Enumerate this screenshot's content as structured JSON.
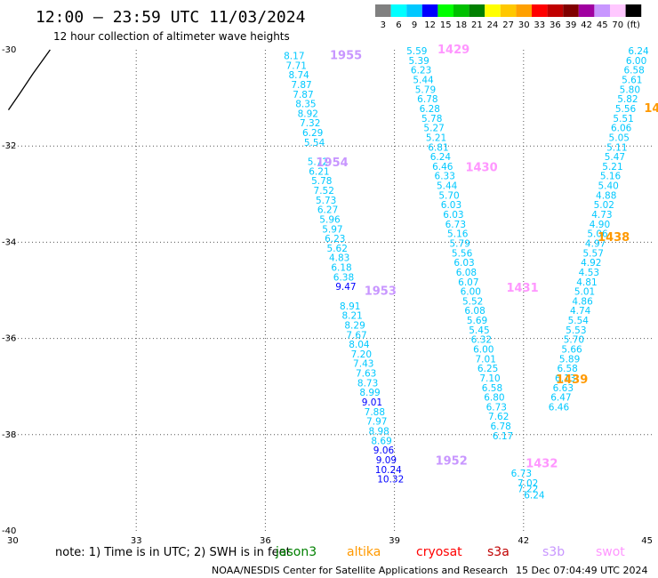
{
  "header": {
    "title": "12:00 — 23:59 UTC 11/03/2024",
    "subtitle": "12 hour collection of altimeter wave heights"
  },
  "legend": {
    "labels": [
      "3",
      "6",
      "9",
      "12",
      "15",
      "18",
      "21",
      "24",
      "27",
      "30",
      "33",
      "36",
      "39",
      "42",
      "45",
      "70",
      "(ft)"
    ],
    "colors": [
      "#808080",
      "#00ffff",
      "#00c8ff",
      "#0000ff",
      "#00ff00",
      "#00c000",
      "#008000",
      "#ffff00",
      "#ffc800",
      "#ffa000",
      "#ff0000",
      "#c00000",
      "#800000",
      "#a000a0",
      "#c896ff",
      "#ffc8ff",
      "#000000"
    ]
  },
  "note": {
    "prefix": "note:  1) Time is in UTC; 2) SWH is in feet",
    "satellites": [
      {
        "name": "jason3",
        "color": "#008000"
      },
      {
        "name": "altika",
        "color": "#ff9900"
      },
      {
        "name": "cryosat",
        "color": "#ff0000"
      },
      {
        "name": "s3a",
        "color": "#c00000"
      },
      {
        "name": "s3b",
        "color": "#c896ff"
      },
      {
        "name": "swot",
        "color": "#ff96ff"
      }
    ]
  },
  "footer": {
    "credit": "NOAA/NESDIS Center for Satellite Applications and Research",
    "timestamp": "15 Dec 07:04:49 UTC 2024"
  },
  "chart_data": {
    "type": "scatter",
    "xlabel": "",
    "ylabel": "",
    "xlim": [
      30,
      45
    ],
    "ylim": [
      -40,
      -30
    ],
    "x_ticks": [
      "30",
      "33",
      "36",
      "39",
      "42",
      "45"
    ],
    "y_ticks": [
      "-30",
      "-32",
      "-34",
      "-36",
      "-38",
      "-40"
    ],
    "grid": true,
    "grid_style": "dotted",
    "coast": [
      [
        30.03,
        -31.25
      ],
      [
        30.3,
        -30.9
      ],
      [
        30.6,
        -30.5
      ],
      [
        30.8,
        -30.25
      ],
      [
        31.0,
        -30.0
      ]
    ],
    "tracks": [
      {
        "color": "#00c8ff",
        "points": [
          [
            36.67,
            -30.12,
            "8.17"
          ],
          [
            36.72,
            -30.32,
            "7.71"
          ],
          [
            36.78,
            -30.52,
            "8.74"
          ],
          [
            36.84,
            -30.72,
            "7.87"
          ],
          [
            36.88,
            -30.92,
            "7.87"
          ],
          [
            36.94,
            -31.12,
            "8.35"
          ],
          [
            36.99,
            -31.32,
            "8.92"
          ],
          [
            37.04,
            -31.52,
            "7.32"
          ],
          [
            37.1,
            -31.72,
            "6.29"
          ],
          [
            37.14,
            -31.92,
            "5.54"
          ],
          [
            37.22,
            -32.32,
            "5.72"
          ],
          [
            37.25,
            -32.52,
            "6.21"
          ],
          [
            37.31,
            -32.72,
            "5.78"
          ],
          [
            37.36,
            -32.92,
            "7.52"
          ],
          [
            37.41,
            -33.12,
            "5.73"
          ],
          [
            37.45,
            -33.32,
            "6.27"
          ],
          [
            37.5,
            -33.52,
            "5.96"
          ],
          [
            37.56,
            -33.72,
            "5.97"
          ],
          [
            37.62,
            -33.92,
            "6.23"
          ],
          [
            37.67,
            -34.12,
            "5.62"
          ],
          [
            37.72,
            -34.32,
            "4.83"
          ],
          [
            37.77,
            -34.52,
            "6.18"
          ],
          [
            37.82,
            -34.72,
            "6.38"
          ],
          [
            37.97,
            -35.32,
            "8.91"
          ],
          [
            38.02,
            -35.52,
            "8.21"
          ],
          [
            38.08,
            -35.72,
            "8.29"
          ],
          [
            38.12,
            -35.92,
            "7.67"
          ],
          [
            38.18,
            -36.12,
            "8.04"
          ],
          [
            38.23,
            -36.32,
            "7.20"
          ],
          [
            38.28,
            -36.52,
            "7.43"
          ],
          [
            38.34,
            -36.72,
            "7.63"
          ],
          [
            38.38,
            -36.92,
            "8.73"
          ],
          [
            38.43,
            -37.12,
            "8.99"
          ],
          [
            38.54,
            -37.52,
            "7.88"
          ],
          [
            38.59,
            -37.72,
            "7.97"
          ],
          [
            38.64,
            -37.92,
            "8.98"
          ],
          [
            38.7,
            -38.12,
            "8.69"
          ],
          [
            42.1,
            -39.12,
            "7.22"
          ],
          [
            42.25,
            -39.25,
            "6.24"
          ],
          [
            42.1,
            -39.0,
            "7.02"
          ],
          [
            41.95,
            -38.8,
            "6.73"
          ]
        ]
      },
      {
        "color": "#0000ff",
        "points": [
          [
            37.87,
            -34.92,
            "9.47"
          ],
          [
            38.48,
            -37.32,
            "9.01"
          ],
          [
            38.75,
            -38.32,
            "9.06"
          ],
          [
            38.81,
            -38.52,
            "9.09"
          ],
          [
            38.86,
            -38.72,
            "10.24"
          ],
          [
            38.91,
            -38.92,
            "10.32"
          ]
        ]
      },
      {
        "color": "#00c8ff",
        "points": [
          [
            39.52,
            -30.02,
            "5.59"
          ],
          [
            39.57,
            -30.22,
            "5.39"
          ],
          [
            39.62,
            -30.42,
            "6.23"
          ],
          [
            39.67,
            -30.62,
            "5.44"
          ],
          [
            39.72,
            -30.82,
            "5.79"
          ],
          [
            39.77,
            -31.02,
            "6.78"
          ],
          [
            39.82,
            -31.22,
            "6.28"
          ],
          [
            39.87,
            -31.42,
            "5.78"
          ],
          [
            39.92,
            -31.62,
            "5.27"
          ],
          [
            39.97,
            -31.82,
            "5.21"
          ],
          [
            40.02,
            -32.02,
            "6.81"
          ],
          [
            40.07,
            -32.22,
            "6.24"
          ],
          [
            40.12,
            -32.42,
            "6.46"
          ],
          [
            40.17,
            -32.62,
            "6.33"
          ],
          [
            40.22,
            -32.82,
            "5.44"
          ],
          [
            40.27,
            -33.02,
            "5.70"
          ],
          [
            40.32,
            -33.22,
            "6.03"
          ],
          [
            40.37,
            -33.42,
            "6.03"
          ],
          [
            40.42,
            -33.62,
            "6.73"
          ],
          [
            40.47,
            -33.82,
            "5.16"
          ],
          [
            40.52,
            -34.02,
            "5.79"
          ],
          [
            40.57,
            -34.22,
            "5.56"
          ],
          [
            40.62,
            -34.42,
            "6.03"
          ],
          [
            40.67,
            -34.62,
            "6.08"
          ],
          [
            40.72,
            -34.82,
            "6.07"
          ],
          [
            40.77,
            -35.02,
            "6.00"
          ],
          [
            40.82,
            -35.22,
            "5.52"
          ],
          [
            40.87,
            -35.42,
            "6.08"
          ],
          [
            40.92,
            -35.62,
            "5.69"
          ],
          [
            40.97,
            -35.82,
            "5.45"
          ],
          [
            41.02,
            -36.02,
            "6.32"
          ],
          [
            41.07,
            -36.22,
            "6.00"
          ],
          [
            41.12,
            -36.42,
            "7.01"
          ],
          [
            41.17,
            -36.62,
            "6.25"
          ],
          [
            41.22,
            -36.82,
            "7.10"
          ],
          [
            41.27,
            -37.02,
            "6.58"
          ],
          [
            41.32,
            -37.22,
            "6.80"
          ],
          [
            41.37,
            -37.42,
            "6.73"
          ],
          [
            41.42,
            -37.62,
            "7.62"
          ],
          [
            41.47,
            -37.82,
            "6.78"
          ],
          [
            41.52,
            -38.02,
            "6.17"
          ]
        ]
      },
      {
        "color": "#00c8ff",
        "points": [
          [
            44.67,
            -30.02,
            "6.24"
          ],
          [
            44.62,
            -30.22,
            "6.00"
          ],
          [
            44.57,
            -30.42,
            "6.58"
          ],
          [
            44.52,
            -30.62,
            "5.61"
          ],
          [
            44.47,
            -30.82,
            "5.80"
          ],
          [
            44.42,
            -31.02,
            "5.82"
          ],
          [
            44.37,
            -31.22,
            "5.56"
          ],
          [
            44.32,
            -31.42,
            "5.51"
          ],
          [
            44.27,
            -31.62,
            "6.06"
          ],
          [
            44.22,
            -31.82,
            "5.05"
          ],
          [
            44.17,
            -32.02,
            "5.11"
          ],
          [
            44.12,
            -32.22,
            "5.47"
          ],
          [
            44.07,
            -32.42,
            "5.21"
          ],
          [
            44.02,
            -32.62,
            "5.16"
          ],
          [
            43.97,
            -32.82,
            "5.40"
          ],
          [
            43.92,
            -33.02,
            "4.88"
          ],
          [
            43.87,
            -33.22,
            "5.02"
          ],
          [
            43.82,
            -33.42,
            "4.73"
          ],
          [
            43.77,
            -33.62,
            "4.90"
          ],
          [
            43.72,
            -33.82,
            "5.06"
          ],
          [
            43.67,
            -34.02,
            "4.97"
          ],
          [
            43.62,
            -34.22,
            "5.57"
          ],
          [
            43.57,
            -34.42,
            "4.92"
          ],
          [
            43.52,
            -34.62,
            "4.53"
          ],
          [
            43.47,
            -34.82,
            "4.81"
          ],
          [
            43.42,
            -35.02,
            "5.01"
          ],
          [
            43.37,
            -35.22,
            "4.86"
          ],
          [
            43.32,
            -35.42,
            "4.74"
          ],
          [
            43.27,
            -35.62,
            "5.54"
          ],
          [
            43.22,
            -35.82,
            "5.53"
          ],
          [
            43.17,
            -36.02,
            "5.70"
          ],
          [
            43.12,
            -36.22,
            "5.66"
          ],
          [
            43.07,
            -36.42,
            "5.89"
          ],
          [
            43.02,
            -36.62,
            "6.58"
          ],
          [
            42.97,
            -36.82,
            "6.13"
          ],
          [
            42.92,
            -37.02,
            "6.63"
          ],
          [
            42.87,
            -37.22,
            "6.47"
          ],
          [
            42.82,
            -37.42,
            "6.46"
          ]
        ]
      }
    ],
    "time_labels": [
      {
        "x": 37.5,
        "y": -30.12,
        "text": "1955",
        "color": "#c896ff"
      },
      {
        "x": 37.18,
        "y": -32.35,
        "text": "1954",
        "color": "#c896ff"
      },
      {
        "x": 38.3,
        "y": -35.02,
        "text": "1953",
        "color": "#c896ff"
      },
      {
        "x": 39.95,
        "y": -38.55,
        "text": "1952",
        "color": "#c896ff"
      },
      {
        "x": 40.0,
        "y": -30.0,
        "text": "1429",
        "color": "#ff96ff"
      },
      {
        "x": 40.65,
        "y": -32.45,
        "text": "1430",
        "color": "#ff96ff"
      },
      {
        "x": 41.6,
        "y": -34.95,
        "text": "1431",
        "color": "#ff96ff"
      },
      {
        "x": 42.05,
        "y": -38.6,
        "text": "1432",
        "color": "#ff96ff"
      },
      {
        "x": 44.8,
        "y": -31.22,
        "text": "14",
        "color": "#ff9900"
      },
      {
        "x": 43.72,
        "y": -33.9,
        "text": "1438",
        "color": "#ff9900"
      },
      {
        "x": 42.75,
        "y": -36.86,
        "text": "1439",
        "color": "#ff9900"
      }
    ]
  }
}
